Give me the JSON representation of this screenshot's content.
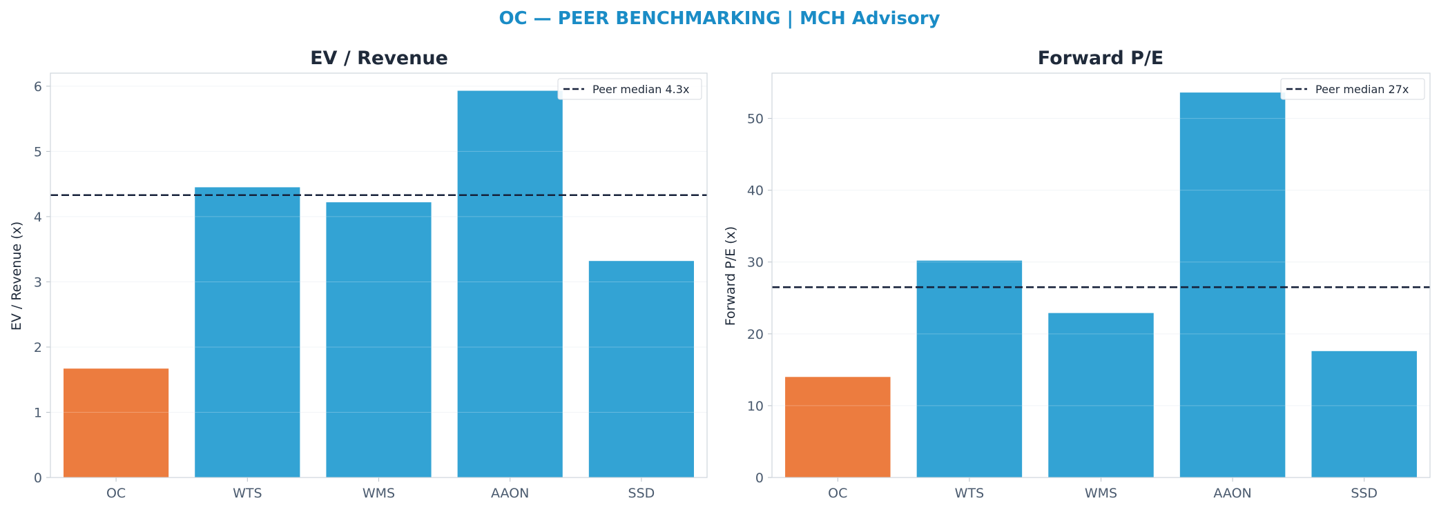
{
  "suptitle": "OC — PEER BENCHMARKING | MCH Advisory",
  "colors": {
    "highlight": "#ec7c3f",
    "bar": "#33a3d4",
    "median_line": "#16213a",
    "title": "#1a8cc6"
  },
  "chart_data": [
    {
      "type": "bar",
      "title": "EV / Revenue",
      "xlabel": "",
      "ylabel": "EV / Revenue (x)",
      "categories": [
        "OC",
        "WTS",
        "WMS",
        "AAON",
        "SSD"
      ],
      "values": [
        1.67,
        4.45,
        4.22,
        5.93,
        3.32
      ],
      "highlight_category": "OC",
      "ylim": [
        0,
        6.2
      ],
      "yticks": [
        0,
        1,
        2,
        3,
        4,
        5,
        6
      ],
      "reference_line": {
        "value": 4.33,
        "label": "Peer median 4.3x",
        "style": "dashed"
      },
      "legend_position": "top-right",
      "grid": true
    },
    {
      "type": "bar",
      "title": "Forward P/E",
      "xlabel": "",
      "ylabel": "Forward P/E (x)",
      "categories": [
        "OC",
        "WTS",
        "WMS",
        "AAON",
        "SSD"
      ],
      "values": [
        14.0,
        30.2,
        22.9,
        53.6,
        17.6
      ],
      "highlight_category": "OC",
      "ylim": [
        0,
        56.3
      ],
      "yticks": [
        0,
        10,
        20,
        30,
        40,
        50
      ],
      "reference_line": {
        "value": 26.5,
        "label": "Peer median 27x",
        "style": "dashed"
      },
      "legend_position": "top-right",
      "grid": true
    }
  ]
}
